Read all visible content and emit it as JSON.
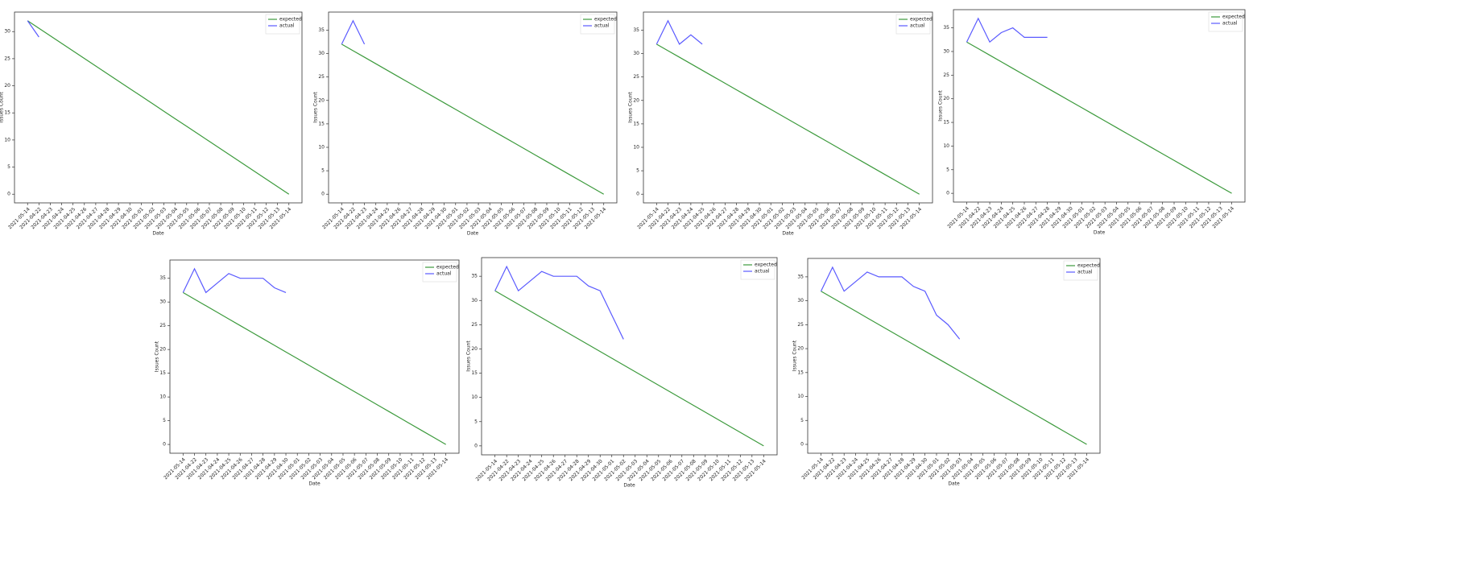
{
  "charts": [
    {
      "type": "line",
      "ylabel": "Issues Count",
      "xlabel": "Date",
      "legend": "upper right",
      "ylim": [
        -1.6,
        33.6
      ],
      "yticks": [
        0,
        5,
        10,
        15,
        20,
        25,
        30
      ],
      "categories": [
        "2021-05-14",
        "2021-04-22",
        "2021-04-23",
        "2021-04-24",
        "2021-04-25",
        "2021-04-26",
        "2021-04-27",
        "2021-04-28",
        "2021-04-29",
        "2021-04-30",
        "2021-05-01",
        "2021-05-02",
        "2021-05-03",
        "2021-05-04",
        "2021-05-05",
        "2021-05-06",
        "2021-05-07",
        "2021-05-08",
        "2021-05-09",
        "2021-05-10",
        "2021-05-11",
        "2021-05-12",
        "2021-05-13",
        "2021-05-14"
      ],
      "series": [
        {
          "name": "expected",
          "color": "#3c9a3c",
          "values": [
            32,
            30.61,
            29.22,
            27.83,
            26.43,
            25.04,
            23.65,
            22.26,
            20.87,
            19.48,
            18.09,
            16.7,
            15.3,
            13.91,
            12.52,
            11.13,
            9.74,
            8.35,
            6.96,
            5.57,
            4.17,
            2.78,
            1.39,
            0
          ]
        },
        {
          "name": "actual",
          "color": "#5a5aff",
          "values": [
            32,
            29
          ]
        }
      ]
    },
    {
      "type": "line",
      "ylabel": "Issues Count",
      "xlabel": "Date",
      "legend": "upper right",
      "ylim": [
        -1.85,
        38.85
      ],
      "yticks": [
        0,
        5,
        10,
        15,
        20,
        25,
        30,
        35
      ],
      "categories": [
        "2021-05-14",
        "2021-04-22",
        "2021-04-23",
        "2021-04-24",
        "2021-04-25",
        "2021-04-26",
        "2021-04-27",
        "2021-04-28",
        "2021-04-29",
        "2021-04-30",
        "2021-05-01",
        "2021-05-02",
        "2021-05-03",
        "2021-05-04",
        "2021-05-05",
        "2021-05-06",
        "2021-05-07",
        "2021-05-08",
        "2021-05-09",
        "2021-05-10",
        "2021-05-11",
        "2021-05-12",
        "2021-05-13",
        "2021-05-14"
      ],
      "series": [
        {
          "name": "expected",
          "color": "#3c9a3c",
          "values": [
            32,
            30.61,
            29.22,
            27.83,
            26.43,
            25.04,
            23.65,
            22.26,
            20.87,
            19.48,
            18.09,
            16.7,
            15.3,
            13.91,
            12.52,
            11.13,
            9.74,
            8.35,
            6.96,
            5.57,
            4.17,
            2.78,
            1.39,
            0
          ]
        },
        {
          "name": "actual",
          "color": "#5a5aff",
          "values": [
            32,
            37,
            32
          ]
        }
      ]
    },
    {
      "type": "line",
      "ylabel": "Issues Count",
      "xlabel": "Date",
      "legend": "upper right",
      "ylim": [
        -1.85,
        38.85
      ],
      "yticks": [
        0,
        5,
        10,
        15,
        20,
        25,
        30,
        35
      ],
      "categories": [
        "2021-05-14",
        "2021-04-22",
        "2021-04-23",
        "2021-04-24",
        "2021-04-25",
        "2021-04-26",
        "2021-04-27",
        "2021-04-28",
        "2021-04-29",
        "2021-04-30",
        "2021-05-01",
        "2021-05-02",
        "2021-05-03",
        "2021-05-04",
        "2021-05-05",
        "2021-05-06",
        "2021-05-07",
        "2021-05-08",
        "2021-05-09",
        "2021-05-10",
        "2021-05-11",
        "2021-05-12",
        "2021-05-13",
        "2021-05-14"
      ],
      "series": [
        {
          "name": "expected",
          "color": "#3c9a3c",
          "values": [
            32,
            30.61,
            29.22,
            27.83,
            26.43,
            25.04,
            23.65,
            22.26,
            20.87,
            19.48,
            18.09,
            16.7,
            15.3,
            13.91,
            12.52,
            11.13,
            9.74,
            8.35,
            6.96,
            5.57,
            4.17,
            2.78,
            1.39,
            0
          ]
        },
        {
          "name": "actual",
          "color": "#5a5aff",
          "values": [
            32,
            37,
            32,
            34,
            32
          ]
        }
      ]
    },
    {
      "type": "line",
      "ylabel": "Issues Count",
      "xlabel": "Date",
      "legend": "upper right",
      "ylim": [
        -1.85,
        38.85
      ],
      "yticks": [
        0,
        5,
        10,
        15,
        20,
        25,
        30,
        35
      ],
      "categories": [
        "2021-05-14",
        "2021-04-22",
        "2021-04-23",
        "2021-04-24",
        "2021-04-25",
        "2021-04-26",
        "2021-04-27",
        "2021-04-28",
        "2021-04-29",
        "2021-04-30",
        "2021-05-01",
        "2021-05-02",
        "2021-05-03",
        "2021-05-04",
        "2021-05-05",
        "2021-05-06",
        "2021-05-07",
        "2021-05-08",
        "2021-05-09",
        "2021-05-10",
        "2021-05-11",
        "2021-05-12",
        "2021-05-13",
        "2021-05-14"
      ],
      "series": [
        {
          "name": "expected",
          "color": "#3c9a3c",
          "values": [
            32,
            30.61,
            29.22,
            27.83,
            26.43,
            25.04,
            23.65,
            22.26,
            20.87,
            19.48,
            18.09,
            16.7,
            15.3,
            13.91,
            12.52,
            11.13,
            9.74,
            8.35,
            6.96,
            5.57,
            4.17,
            2.78,
            1.39,
            0
          ]
        },
        {
          "name": "actual",
          "color": "#5a5aff",
          "values": [
            32,
            37,
            32,
            34,
            35,
            33,
            33,
            33
          ]
        }
      ]
    },
    {
      "type": "line",
      "ylabel": "Issues Count",
      "xlabel": "Date",
      "legend": "upper right",
      "ylim": [
        -1.85,
        38.85
      ],
      "yticks": [
        0,
        5,
        10,
        15,
        20,
        25,
        30,
        35
      ],
      "categories": [
        "2021-05-14",
        "2021-04-22",
        "2021-04-23",
        "2021-04-24",
        "2021-04-25",
        "2021-04-26",
        "2021-04-27",
        "2021-04-28",
        "2021-04-29",
        "2021-04-30",
        "2021-05-01",
        "2021-05-02",
        "2021-05-03",
        "2021-05-04",
        "2021-05-05",
        "2021-05-06",
        "2021-05-07",
        "2021-05-08",
        "2021-05-09",
        "2021-05-10",
        "2021-05-11",
        "2021-05-12",
        "2021-05-13",
        "2021-05-14"
      ],
      "series": [
        {
          "name": "expected",
          "color": "#3c9a3c",
          "values": [
            32,
            30.61,
            29.22,
            27.83,
            26.43,
            25.04,
            23.65,
            22.26,
            20.87,
            19.48,
            18.09,
            16.7,
            15.3,
            13.91,
            12.52,
            11.13,
            9.74,
            8.35,
            6.96,
            5.57,
            4.17,
            2.78,
            1.39,
            0
          ]
        },
        {
          "name": "actual",
          "color": "#5a5aff",
          "values": [
            32,
            37,
            32,
            34,
            36,
            35,
            35,
            35,
            33,
            32
          ]
        }
      ]
    },
    {
      "type": "line",
      "ylabel": "Issues Count",
      "xlabel": "Date",
      "legend": "upper right",
      "ylim": [
        -1.85,
        38.85
      ],
      "yticks": [
        0,
        5,
        10,
        15,
        20,
        25,
        30,
        35
      ],
      "categories": [
        "2021-05-14",
        "2021-04-22",
        "2021-04-23",
        "2021-04-24",
        "2021-04-25",
        "2021-04-26",
        "2021-04-27",
        "2021-04-28",
        "2021-04-29",
        "2021-04-30",
        "2021-05-01",
        "2021-05-02",
        "2021-05-03",
        "2021-05-04",
        "2021-05-05",
        "2021-05-06",
        "2021-05-07",
        "2021-05-08",
        "2021-05-09",
        "2021-05-10",
        "2021-05-11",
        "2021-05-12",
        "2021-05-13",
        "2021-05-14"
      ],
      "series": [
        {
          "name": "expected",
          "color": "#3c9a3c",
          "values": [
            32,
            30.61,
            29.22,
            27.83,
            26.43,
            25.04,
            23.65,
            22.26,
            20.87,
            19.48,
            18.09,
            16.7,
            15.3,
            13.91,
            12.52,
            11.13,
            9.74,
            8.35,
            6.96,
            5.57,
            4.17,
            2.78,
            1.39,
            0
          ]
        },
        {
          "name": "actual",
          "color": "#5a5aff",
          "values": [
            32,
            37,
            32,
            34,
            36,
            35,
            35,
            35,
            33,
            32,
            27,
            22
          ]
        }
      ]
    },
    {
      "type": "line",
      "ylabel": "Issues Count",
      "xlabel": "Date",
      "legend": "upper right",
      "ylim": [
        -1.85,
        38.85
      ],
      "yticks": [
        0,
        5,
        10,
        15,
        20,
        25,
        30,
        35
      ],
      "categories": [
        "2021-05-14",
        "2021-04-22",
        "2021-04-23",
        "2021-04-24",
        "2021-04-25",
        "2021-04-26",
        "2021-04-27",
        "2021-04-28",
        "2021-04-29",
        "2021-04-30",
        "2021-05-01",
        "2021-05-02",
        "2021-05-03",
        "2021-05-04",
        "2021-05-05",
        "2021-05-06",
        "2021-05-07",
        "2021-05-08",
        "2021-05-09",
        "2021-05-10",
        "2021-05-11",
        "2021-05-12",
        "2021-05-13",
        "2021-05-14"
      ],
      "series": [
        {
          "name": "expected",
          "color": "#3c9a3c",
          "values": [
            32,
            30.61,
            29.22,
            27.83,
            26.43,
            25.04,
            23.65,
            22.26,
            20.87,
            19.48,
            18.09,
            16.7,
            15.3,
            13.91,
            12.52,
            11.13,
            9.74,
            8.35,
            6.96,
            5.57,
            4.17,
            2.78,
            1.39,
            0
          ]
        },
        {
          "name": "actual",
          "color": "#5a5aff",
          "values": [
            32,
            37,
            32,
            34,
            36,
            35,
            35,
            35,
            33,
            32,
            27,
            25,
            22
          ]
        }
      ]
    }
  ]
}
